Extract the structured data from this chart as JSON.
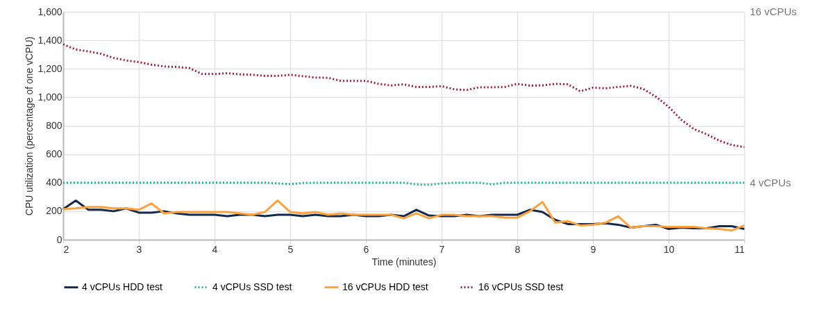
{
  "chart_data": {
    "type": "line",
    "xlabel": "Time (minutes)",
    "ylabel": "CPU utilization (percentage of one vCPU)",
    "x": [
      2,
      2.167,
      2.333,
      2.5,
      2.667,
      2.833,
      3,
      3.167,
      3.333,
      3.5,
      3.667,
      3.833,
      4,
      4.167,
      4.333,
      4.5,
      4.667,
      4.833,
      5,
      5.167,
      5.333,
      5.5,
      5.667,
      5.833,
      6,
      6.167,
      6.333,
      6.5,
      6.667,
      6.833,
      7,
      7.167,
      7.333,
      7.5,
      7.667,
      7.833,
      8,
      8.167,
      8.333,
      8.5,
      8.667,
      8.833,
      9,
      9.167,
      9.333,
      9.5,
      9.667,
      9.833,
      10,
      10.167,
      10.333,
      10.5,
      10.667,
      10.833,
      11
    ],
    "series": [
      {
        "name": "4 vCPUs HDD test",
        "color": "#12284c",
        "line_style": "solid",
        "values": [
          215,
          275,
          210,
          210,
          200,
          220,
          190,
          190,
          200,
          185,
          175,
          175,
          175,
          165,
          175,
          175,
          165,
          175,
          175,
          165,
          175,
          165,
          165,
          175,
          165,
          165,
          175,
          165,
          210,
          170,
          165,
          165,
          175,
          165,
          175,
          175,
          175,
          210,
          195,
          140,
          110,
          110,
          110,
          115,
          105,
          85,
          95,
          105,
          75,
          85,
          80,
          80,
          95,
          95,
          75
        ]
      },
      {
        "name": "4 vCPUs SSD test",
        "color": "#1bb3a0",
        "line_style": "dotted",
        "values": [
          400,
          400,
          400,
          400,
          400,
          400,
          400,
          400,
          400,
          400,
          400,
          400,
          400,
          400,
          400,
          400,
          400,
          395,
          390,
          398,
          400,
          400,
          400,
          400,
          400,
          400,
          400,
          400,
          388,
          385,
          395,
          400,
          400,
          400,
          388,
          400,
          400,
          400,
          400,
          400,
          400,
          400,
          400,
          400,
          400,
          400,
          400,
          400,
          400,
          400,
          400,
          400,
          400,
          400,
          400
        ]
      },
      {
        "name": "16 vCPUs HDD test",
        "color": "#ffa13b",
        "line_style": "solid",
        "values": [
          215,
          220,
          230,
          230,
          220,
          220,
          210,
          255,
          185,
          195,
          195,
          195,
          195,
          195,
          185,
          175,
          195,
          275,
          195,
          185,
          195,
          175,
          185,
          175,
          175,
          175,
          175,
          150,
          185,
          150,
          175,
          175,
          165,
          165,
          165,
          155,
          155,
          200,
          265,
          120,
          130,
          100,
          105,
          120,
          165,
          85,
          95,
          95,
          90,
          90,
          90,
          80,
          75,
          65,
          100
        ]
      },
      {
        "name": "16 vCPUs SSD test",
        "color": "#a11c3a",
        "line_style": "dotted",
        "values": [
          1372,
          1335,
          1322,
          1305,
          1276,
          1258,
          1247,
          1229,
          1216,
          1213,
          1205,
          1164,
          1163,
          1169,
          1161,
          1158,
          1150,
          1150,
          1158,
          1148,
          1138,
          1137,
          1115,
          1115,
          1115,
          1094,
          1083,
          1091,
          1072,
          1072,
          1078,
          1056,
          1051,
          1070,
          1070,
          1072,
          1094,
          1082,
          1083,
          1094,
          1091,
          1042,
          1067,
          1063,
          1072,
          1080,
          1058,
          1003,
          933,
          842,
          777,
          741,
          696,
          665,
          650
        ]
      }
    ],
    "xlim": [
      2,
      11
    ],
    "xticks": [
      2,
      3,
      4,
      5,
      6,
      7,
      8,
      9,
      10,
      11
    ],
    "ylim": [
      0,
      1600
    ],
    "yticks": [
      0,
      200,
      400,
      600,
      800,
      {
        "value": 1000,
        "label": "1,000"
      },
      {
        "value": 1200,
        "label": "1,200"
      },
      {
        "value": 1400,
        "label": "1,400"
      },
      {
        "value": 1600,
        "label": "1,600"
      }
    ],
    "annotations": [
      "16 vCPUs",
      "4 vCPUs"
    ],
    "grid": true,
    "legend": "bottom",
    "marker": "none"
  }
}
